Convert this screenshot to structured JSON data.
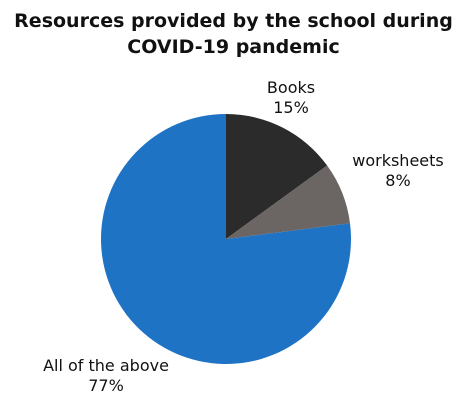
{
  "chart_data": {
    "type": "pie",
    "title_lines": [
      "Resources provided by the school during",
      "COVID-19 pandemic"
    ],
    "slices": [
      {
        "label": "Books",
        "value": 15,
        "value_label": "15%",
        "color": "#2b2b2b"
      },
      {
        "label": "worksheets",
        "value": 8,
        "value_label": "8%",
        "color": "#6b6664"
      },
      {
        "label": "All of the above",
        "value": 77,
        "value_label": "77%",
        "color": "#1f73c4"
      }
    ],
    "start_angle_deg": 0,
    "direction": "clockwise",
    "legend": "none"
  }
}
